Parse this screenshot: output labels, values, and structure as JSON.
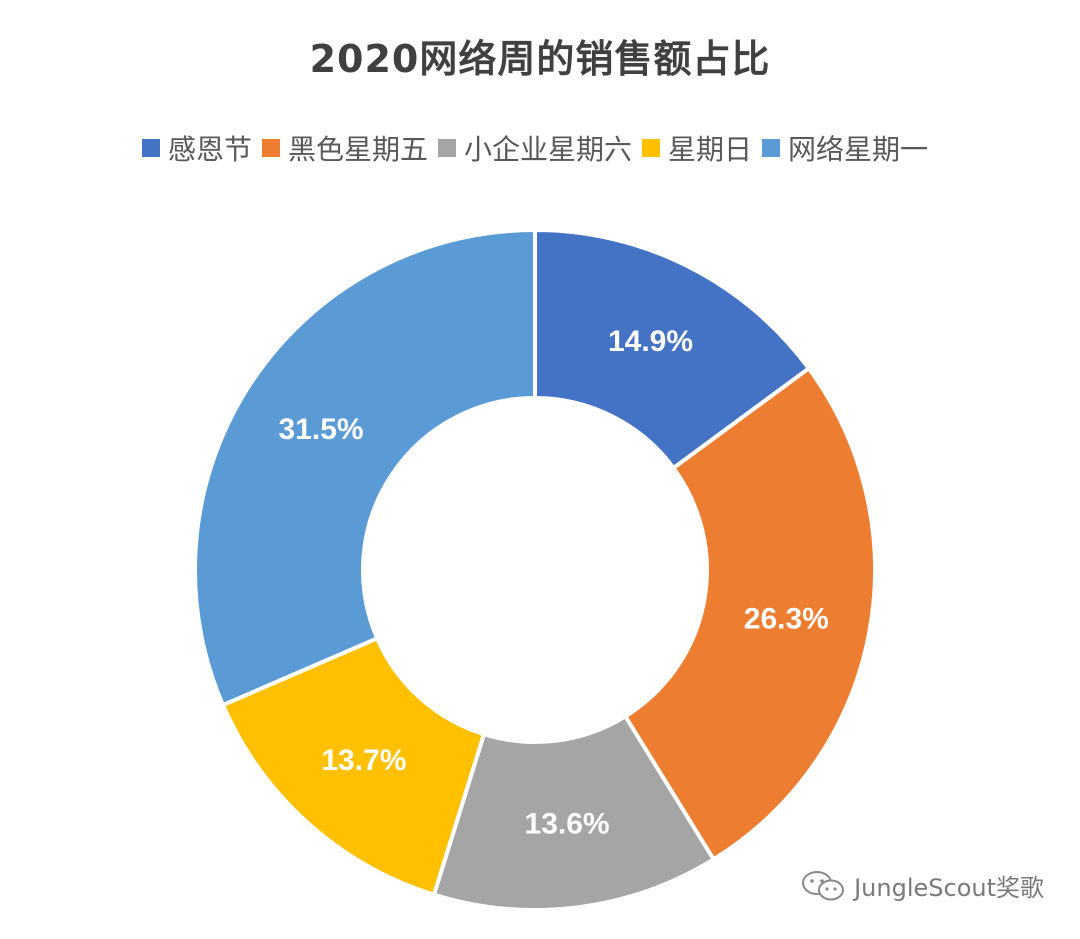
{
  "chart_data": {
    "type": "pie",
    "title": "2020网络周的销售额占比",
    "categories": [
      "感恩节",
      "黑色星期五",
      "小企业星期六",
      "星期日",
      "网络星期一"
    ],
    "values": [
      14.9,
      26.3,
      13.6,
      13.7,
      31.5
    ],
    "labels": [
      "14.9%",
      "26.3%",
      "13.6%",
      "13.7%",
      "31.5%"
    ],
    "colors": [
      "#4472C4",
      "#ED7D31",
      "#A5A5A5",
      "#FFC000",
      "#5B9BD5"
    ],
    "donut": true,
    "legend_position": "top"
  },
  "watermark": {
    "icon": "wechat-icon",
    "text": "JungleScout奖歌"
  }
}
